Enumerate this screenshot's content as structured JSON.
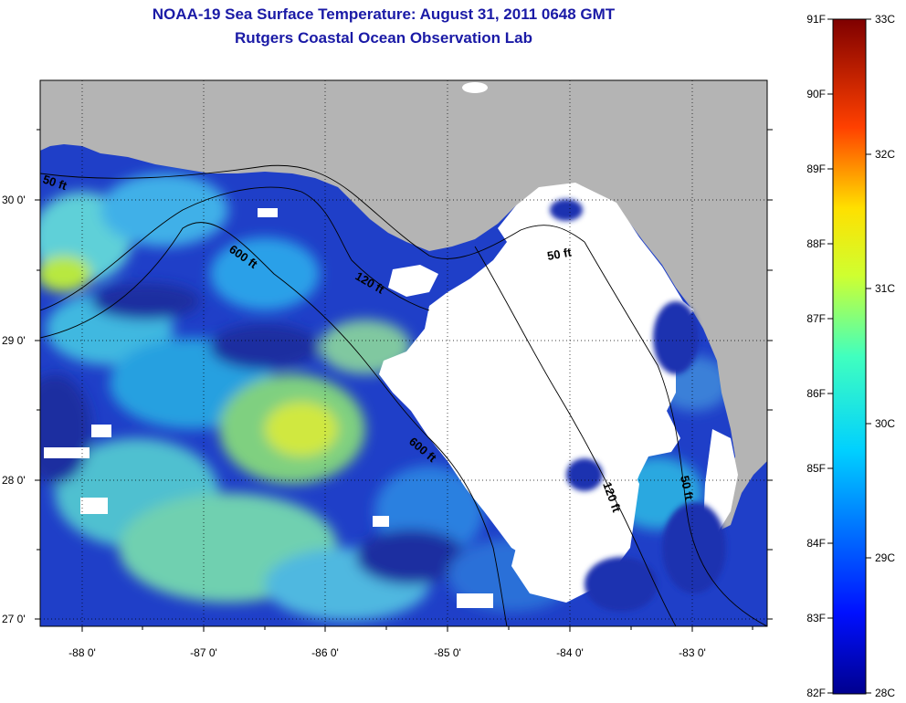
{
  "title": "NOAA-19 Sea Surface Temperature:  August 31, 2011 0648 GMT",
  "subtitle": "Rutgers Coastal Ocean Observation Lab",
  "map": {
    "lon_ticks": [
      "-88 0'",
      "-87 0'",
      "-86 0'",
      "-85 0'",
      "-84 0'",
      "-83 0'"
    ],
    "lat_ticks": [
      "30 0'",
      "29 0'",
      "28 0'",
      "27 0'"
    ],
    "contour_labels": [
      "50 ft",
      "600 ft",
      "120 ft",
      "50 ft",
      "600 ft",
      "120 ft",
      "50 ft"
    ],
    "colors": {
      "land": "#b4b4b4",
      "cloud": "#ffffff",
      "deep_blue": "#1f2fa8"
    }
  },
  "colorbar": {
    "fahrenheit": [
      "91F",
      "90F",
      "89F",
      "88F",
      "87F",
      "86F",
      "85F",
      "84F",
      "83F",
      "82F"
    ],
    "celsius": [
      "33C",
      "32C",
      "31C",
      "30C",
      "29C",
      "28C"
    ],
    "min_f": 82,
    "max_f": 91,
    "min_c": 28,
    "max_c": 33
  }
}
